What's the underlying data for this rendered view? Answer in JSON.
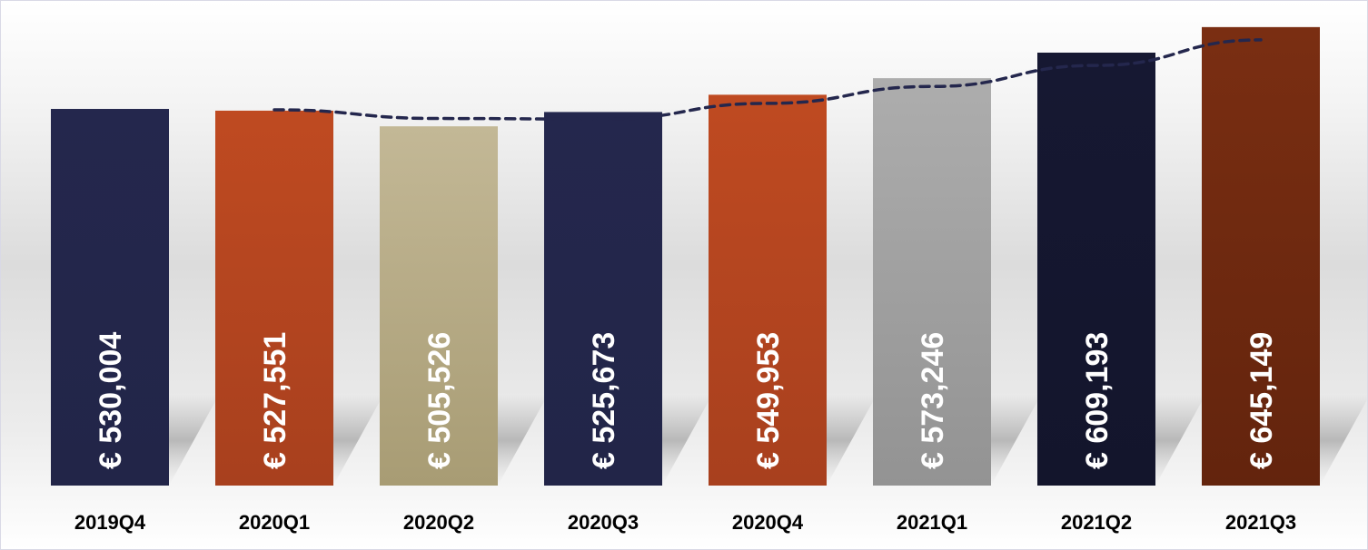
{
  "chart_data": {
    "type": "bar",
    "categories": [
      "2019Q4",
      "2020Q1",
      "2020Q2",
      "2020Q3",
      "2020Q4",
      "2021Q1",
      "2021Q2",
      "2021Q3"
    ],
    "values": [
      530004,
      527551,
      505526,
      525673,
      549953,
      573246,
      609193,
      645149
    ],
    "value_labels": [
      "€ 530,004",
      "€ 527,551",
      "€ 505,526",
      "€ 525,673",
      "€ 549,953",
      "€ 573,246",
      "€ 609,193",
      "€ 645,149"
    ],
    "bar_colors": [
      "#24274d",
      "#bf4a21",
      "#c3b896",
      "#24274d",
      "#bf4a21",
      "#adadad",
      "#161832",
      "#7a2e12"
    ],
    "bar_colors_bottom": [
      "#222548",
      "#a8401e",
      "#a89c74",
      "#222548",
      "#a8401e",
      "#939393",
      "#13152c",
      "#63240d"
    ],
    "trendline": {
      "style": "dashed",
      "color": "#24274d",
      "type": "moving-average"
    },
    "title": "",
    "xlabel": "",
    "ylabel": "",
    "ylim": [
      0,
      682000
    ],
    "grid": false,
    "legend": "none"
  }
}
